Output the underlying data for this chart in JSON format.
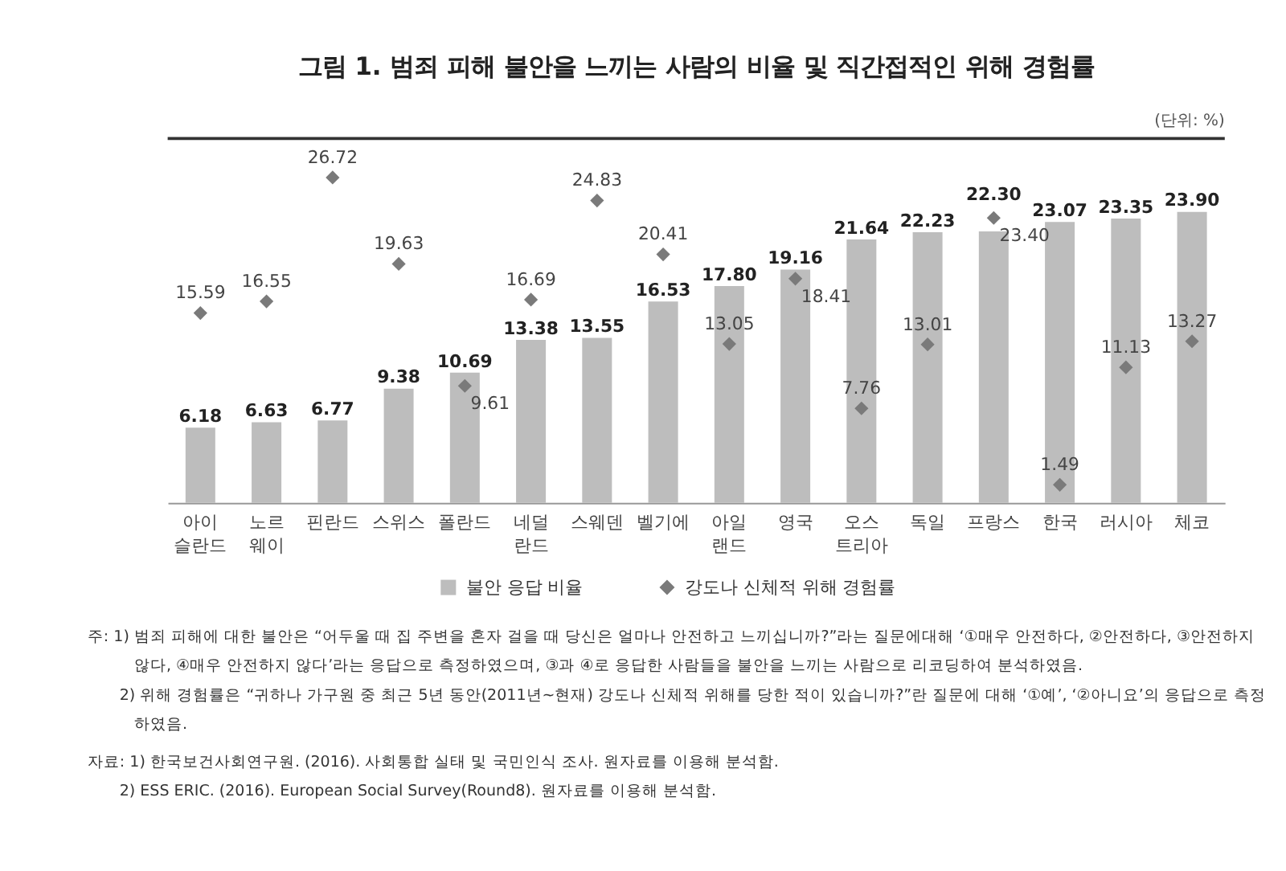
{
  "chart_data": {
    "type": "bar",
    "title": "그림 1. 범죄 피해 불안을 느끼는 사람의 비율 및 직간접적인 위해 경험률",
    "categories": [
      "아이슬란드",
      "노르웨이",
      "핀란드",
      "스위스",
      "폴란드",
      "네덜란드",
      "스웨덴",
      "벨기에",
      "아일랜드",
      "영국",
      "오스트리아",
      "독일",
      "프랑스",
      "한국",
      "러시아",
      "체코"
    ],
    "series": [
      {
        "name": "불안 응답 비율",
        "color": "#bdbdbd",
        "values": [
          6.18,
          6.63,
          6.77,
          9.38,
          10.69,
          13.38,
          13.55,
          16.53,
          17.8,
          19.16,
          21.64,
          22.23,
          22.3,
          23.07,
          23.35,
          23.9
        ],
        "value_labels": [
          "6.18",
          "6.63",
          "6.77",
          "9.38",
          "10.69",
          "13.38",
          "13.55",
          "16.53",
          "17.80",
          "19.16",
          "21.64",
          "22.23",
          "22.30",
          "23.07",
          "23.35",
          "23.90"
        ]
      },
      {
        "name": "강도나 신체적 위해 경험률",
        "type": "scatter",
        "marker": "diamond",
        "color": "#7a7a7a",
        "values": [
          15.59,
          16.55,
          26.72,
          19.63,
          9.61,
          16.69,
          24.83,
          20.41,
          13.05,
          18.41,
          7.76,
          13.01,
          23.4,
          1.49,
          11.13,
          13.27
        ],
        "value_labels": [
          "15.59",
          "16.55",
          "26.72",
          "19.63",
          "9.61",
          "16.69",
          "24.83",
          "20.41",
          "13.05",
          "18.41",
          "7.76",
          "13.01",
          "23.40",
          "1.49",
          "11.13",
          "13.27"
        ]
      }
    ],
    "legend": "bottom",
    "annotations": [
      "(단위: %)",
      "주: 1) 범죄 피해에 대한 불안은 “어두울 때 집 주변을 혼자 걸을 때 당신은 얼마나 안전하고 느끼십니까?”라는 질문에대해 ‘①매우 안전하다, ②안전하다, ③안전하지",
      "않다, ④매우 안전하지 않다’라는 응답으로 측정하였으며, ③과 ④로 응답한 사람들을 불안을 느끼는 사람으로 리코딩하여 분석하였음.",
      "2) 위해 경험률은 “귀하나 가구원 중 최근 5년 동안(2011년~현재) 강도나 신체적 위해를 당한 적이 있습니까?”란 질문에 대해 ‘①예’, ‘②아니요’의 응답으로 측정",
      "하였음.",
      "자료: 1) 한국보건사회연구원. (2016). 사회통합 실태 및 국민인식 조사. 원자료를 이용해 분석함.",
      "2) ESS ERIC. (2016). European Social Survey(Round8). 원자료를 이용해 분석함."
    ]
  }
}
